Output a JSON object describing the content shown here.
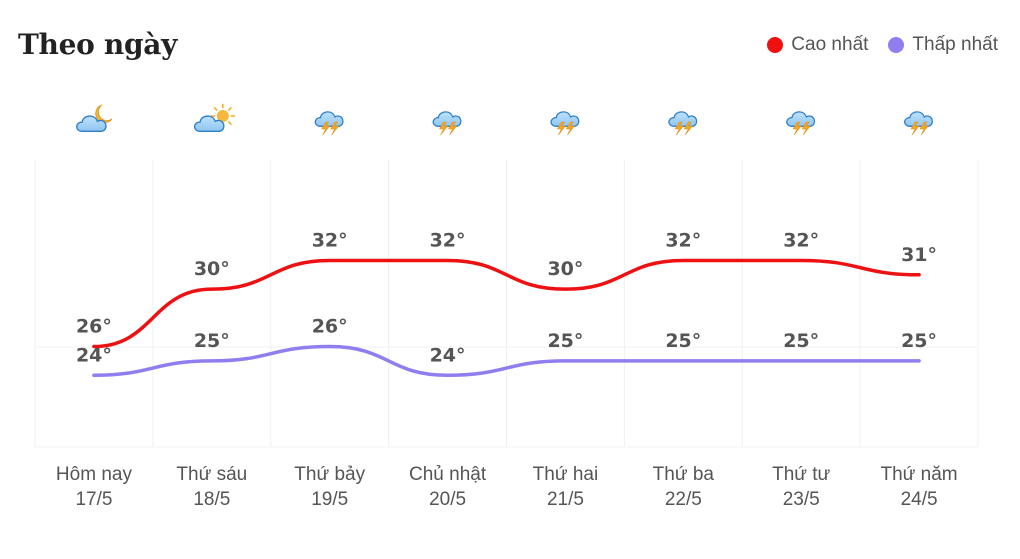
{
  "title": "Theo ngày",
  "legend": {
    "high_label": "Cao nhất",
    "low_label": "Thấp nhất",
    "high_color": "#ee1111",
    "low_color": "#8f7ef0"
  },
  "icons": [
    "partly-cloudy-night-icon",
    "partly-cloudy-day-icon",
    "thunderstorm-icon",
    "thunderstorm-icon",
    "thunderstorm-icon",
    "thunderstorm-icon",
    "thunderstorm-icon",
    "thunderstorm-icon"
  ],
  "chart_data": {
    "type": "line",
    "categories": [
      {
        "day": "Hôm nay",
        "date": "17/5"
      },
      {
        "day": "Thứ sáu",
        "date": "18/5"
      },
      {
        "day": "Thứ bảy",
        "date": "19/5"
      },
      {
        "day": "Chủ nhật",
        "date": "20/5"
      },
      {
        "day": "Thứ hai",
        "date": "21/5"
      },
      {
        "day": "Thứ ba",
        "date": "22/5"
      },
      {
        "day": "Thứ tư",
        "date": "23/5"
      },
      {
        "day": "Thứ năm",
        "date": "24/5"
      }
    ],
    "series": [
      {
        "name": "Cao nhất",
        "values": [
          26,
          30,
          32,
          32,
          30,
          32,
          32,
          31
        ],
        "labels": [
          "26°",
          "30°",
          "32°",
          "32°",
          "30°",
          "32°",
          "32°",
          "31°"
        ]
      },
      {
        "name": "Thấp nhất",
        "values": [
          24,
          25,
          26,
          24,
          25,
          25,
          25,
          25
        ],
        "labels": [
          "24°",
          "25°",
          "26°",
          "24°",
          "25°",
          "25°",
          "25°",
          "25°"
        ]
      }
    ],
    "ylim": [
      19,
      39
    ],
    "grid": true,
    "legend_position": "top-right"
  }
}
